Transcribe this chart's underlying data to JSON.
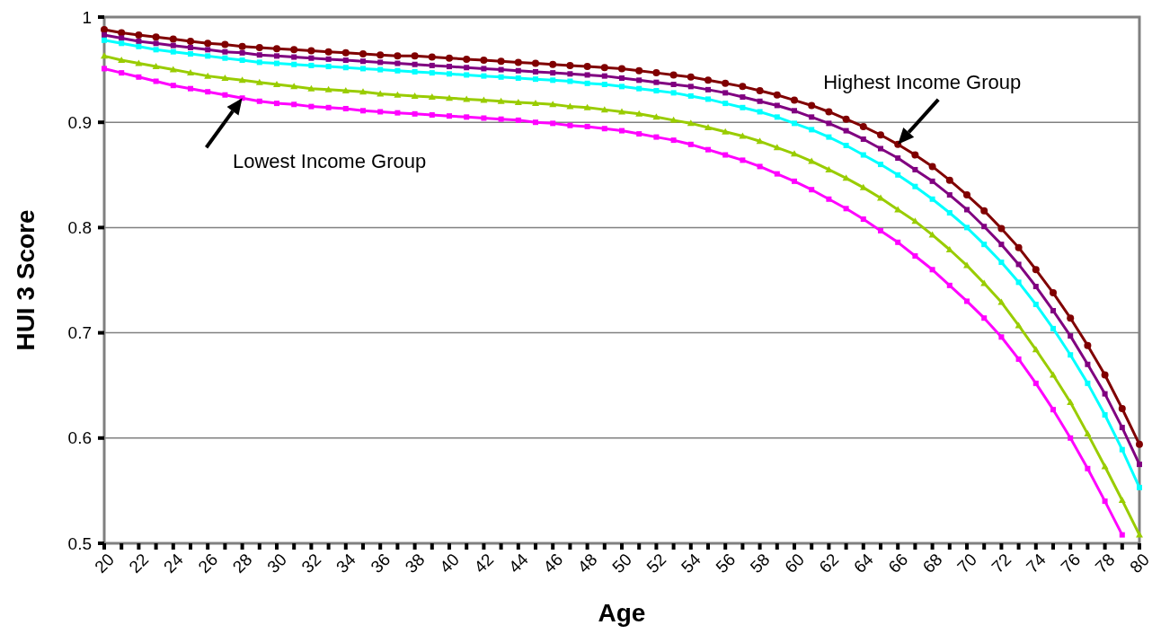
{
  "chart_data": {
    "type": "line",
    "xlabel": "Age",
    "ylabel": "HUI 3 Score",
    "x": [
      20,
      21,
      22,
      23,
      24,
      25,
      26,
      27,
      28,
      29,
      30,
      31,
      32,
      33,
      34,
      35,
      36,
      37,
      38,
      39,
      40,
      41,
      42,
      43,
      44,
      45,
      46,
      47,
      48,
      49,
      50,
      51,
      52,
      53,
      54,
      55,
      56,
      57,
      58,
      59,
      60,
      61,
      62,
      63,
      64,
      65,
      66,
      67,
      68,
      69,
      70,
      71,
      72,
      73,
      74,
      75,
      76,
      77,
      78,
      79,
      80
    ],
    "xlim": [
      20,
      80
    ],
    "xticks": [
      20,
      {
        "value": 21,
        "label": null
      },
      22,
      {
        "value": 23,
        "label": null
      },
      24,
      {
        "value": 25,
        "label": null
      },
      26,
      {
        "value": 27,
        "label": null
      },
      28,
      {
        "value": 29,
        "label": null
      },
      30,
      {
        "value": 31,
        "label": null
      },
      32,
      {
        "value": 33,
        "label": null
      },
      34,
      {
        "value": 35,
        "label": null
      },
      36,
      {
        "value": 37,
        "label": null
      },
      38,
      {
        "value": 39,
        "label": null
      },
      40,
      {
        "value": 41,
        "label": null
      },
      42,
      {
        "value": 43,
        "label": null
      },
      44,
      {
        "value": 45,
        "label": null
      },
      46,
      {
        "value": 47,
        "label": null
      },
      48,
      {
        "value": 49,
        "label": null
      },
      50,
      {
        "value": 51,
        "label": null
      },
      52,
      {
        "value": 53,
        "label": null
      },
      54,
      {
        "value": 55,
        "label": null
      },
      56,
      {
        "value": 57,
        "label": null
      },
      58,
      {
        "value": 59,
        "label": null
      },
      60,
      {
        "value": 61,
        "label": null
      },
      62,
      {
        "value": 63,
        "label": null
      },
      64,
      {
        "value": 65,
        "label": null
      },
      66,
      {
        "value": 67,
        "label": null
      },
      68,
      {
        "value": 69,
        "label": null
      },
      70,
      {
        "value": 71,
        "label": null
      },
      72,
      {
        "value": 73,
        "label": null
      },
      74,
      {
        "value": 75,
        "label": null
      },
      76,
      {
        "value": 77,
        "label": null
      },
      78,
      {
        "value": 79,
        "label": null
      },
      80
    ],
    "ylim": [
      0.5,
      1
    ],
    "yticks": [
      0.5,
      0.6,
      0.7,
      0.8,
      0.9,
      1
    ],
    "grid": "y",
    "line_style": "solid",
    "series": [
      {
        "color": "#800000",
        "marker": "circle",
        "values": [
          0.988,
          0.985,
          0.983,
          0.981,
          0.979,
          0.977,
          0.975,
          0.974,
          0.972,
          0.971,
          0.97,
          0.969,
          0.968,
          0.967,
          0.966,
          0.965,
          0.964,
          0.963,
          0.963,
          0.962,
          0.961,
          0.96,
          0.959,
          0.958,
          0.957,
          0.956,
          0.955,
          0.954,
          0.953,
          0.952,
          0.951,
          0.949,
          0.947,
          0.945,
          0.943,
          0.94,
          0.937,
          0.934,
          0.93,
          0.926,
          0.921,
          0.916,
          0.91,
          0.903,
          0.896,
          0.888,
          0.879,
          0.869,
          0.858,
          0.845,
          0.831,
          0.816,
          0.799,
          0.781,
          0.76,
          0.738,
          0.714,
          0.688,
          0.66,
          0.628,
          0.594
        ]
      },
      {
        "color": "#800080",
        "marker": "square",
        "values": [
          0.983,
          0.98,
          0.977,
          0.975,
          0.973,
          0.971,
          0.969,
          0.967,
          0.966,
          0.964,
          0.963,
          0.962,
          0.961,
          0.96,
          0.959,
          0.958,
          0.957,
          0.956,
          0.955,
          0.954,
          0.953,
          0.952,
          0.951,
          0.95,
          0.949,
          0.948,
          0.947,
          0.946,
          0.945,
          0.944,
          0.942,
          0.94,
          0.938,
          0.936,
          0.934,
          0.931,
          0.928,
          0.924,
          0.92,
          0.916,
          0.911,
          0.905,
          0.899,
          0.892,
          0.884,
          0.875,
          0.866,
          0.855,
          0.844,
          0.831,
          0.817,
          0.801,
          0.784,
          0.765,
          0.744,
          0.721,
          0.697,
          0.67,
          0.642,
          0.61,
          0.575
        ]
      },
      {
        "color": "#00ffff",
        "marker": "square",
        "values": [
          0.978,
          0.975,
          0.972,
          0.969,
          0.967,
          0.965,
          0.963,
          0.961,
          0.959,
          0.957,
          0.956,
          0.955,
          0.954,
          0.953,
          0.952,
          0.951,
          0.95,
          0.949,
          0.948,
          0.947,
          0.946,
          0.945,
          0.944,
          0.943,
          0.942,
          0.941,
          0.94,
          0.939,
          0.937,
          0.936,
          0.934,
          0.932,
          0.93,
          0.928,
          0.925,
          0.922,
          0.918,
          0.914,
          0.91,
          0.905,
          0.899,
          0.893,
          0.886,
          0.878,
          0.869,
          0.86,
          0.85,
          0.839,
          0.827,
          0.814,
          0.8,
          0.784,
          0.767,
          0.748,
          0.727,
          0.704,
          0.679,
          0.652,
          0.622,
          0.589,
          0.553
        ]
      },
      {
        "color": "#99cc00",
        "marker": "triangle",
        "values": [
          0.963,
          0.959,
          0.956,
          0.953,
          0.95,
          0.947,
          0.944,
          0.942,
          0.94,
          0.938,
          0.936,
          0.934,
          0.932,
          0.931,
          0.93,
          0.929,
          0.927,
          0.926,
          0.925,
          0.924,
          0.923,
          0.922,
          0.921,
          0.92,
          0.919,
          0.918,
          0.917,
          0.915,
          0.914,
          0.912,
          0.91,
          0.908,
          0.905,
          0.902,
          0.899,
          0.895,
          0.891,
          0.887,
          0.882,
          0.876,
          0.87,
          0.863,
          0.855,
          0.847,
          0.838,
          0.828,
          0.817,
          0.806,
          0.793,
          0.779,
          0.764,
          0.747,
          0.729,
          0.707,
          0.684,
          0.66,
          0.634,
          0.604,
          0.573,
          0.541,
          0.508
        ]
      },
      {
        "color": "#ff00ff",
        "marker": "square",
        "values": [
          0.951,
          0.947,
          0.943,
          0.939,
          0.935,
          0.932,
          0.929,
          0.926,
          0.923,
          0.92,
          0.918,
          0.917,
          0.915,
          0.914,
          0.913,
          0.911,
          0.91,
          0.909,
          0.908,
          0.907,
          0.906,
          0.905,
          0.904,
          0.903,
          0.902,
          0.9,
          0.899,
          0.897,
          0.896,
          0.894,
          0.892,
          0.889,
          0.886,
          0.883,
          0.879,
          0.874,
          0.869,
          0.864,
          0.858,
          0.851,
          0.844,
          0.836,
          0.827,
          0.818,
          0.808,
          0.797,
          0.786,
          0.773,
          0.76,
          0.745,
          0.73,
          0.714,
          0.696,
          0.675,
          0.652,
          0.627,
          0.6,
          0.571,
          0.54,
          0.508,
          null
        ]
      }
    ],
    "annotations": [
      {
        "text": "Highest Income Group",
        "x": 66,
        "y": 0.879
      },
      {
        "text": "Lowest Income Group",
        "x": 28,
        "y": 0.923
      }
    ]
  }
}
